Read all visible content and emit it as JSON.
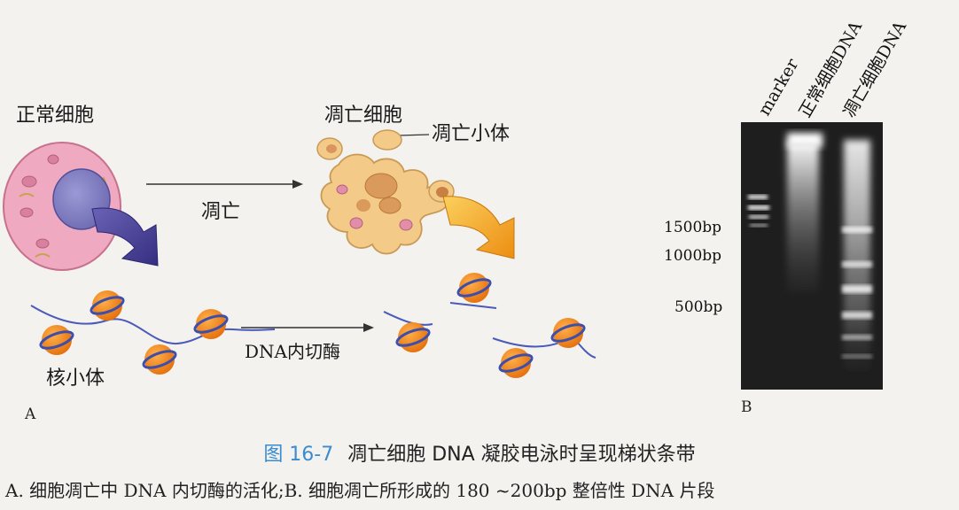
{
  "panel_a": {
    "label_normal_cell": "正常细胞",
    "label_apoptotic_cell": "凋亡细胞",
    "label_apoptotic_body": "凋亡小体",
    "label_arrow_apoptosis": "凋亡",
    "label_enzyme": "DNA内切酶",
    "label_nucleosome": "核小体",
    "panel_letter": "A"
  },
  "panel_b": {
    "lanes": [
      "marker",
      "正常细胞DNA",
      "凋亡细胞DNA"
    ],
    "size_markers": [
      "1500bp",
      "1000bp",
      "500bp"
    ],
    "panel_letter": "B"
  },
  "caption": {
    "number": "图 16-7",
    "title": "凋亡细胞 DNA 凝胶电泳时呈现梯状条带"
  },
  "legend_text": "A. 细胞凋亡中 DNA 内切酶的活化;B. 细胞凋亡所形成的 180 ~200bp 整倍性 DNA 片段",
  "colors": {
    "cell_fill": "#efa9c0",
    "nucleus_fill": "#8a87c8",
    "apoptotic_fill": "#f3ca88",
    "arrow_purple": "#4d4597",
    "arrow_orange": "#f2a11e",
    "nucleosome_orange": "#f08a1c",
    "dna_strand": "#4a5ab8",
    "caption_blue": "#3a8bd0"
  }
}
